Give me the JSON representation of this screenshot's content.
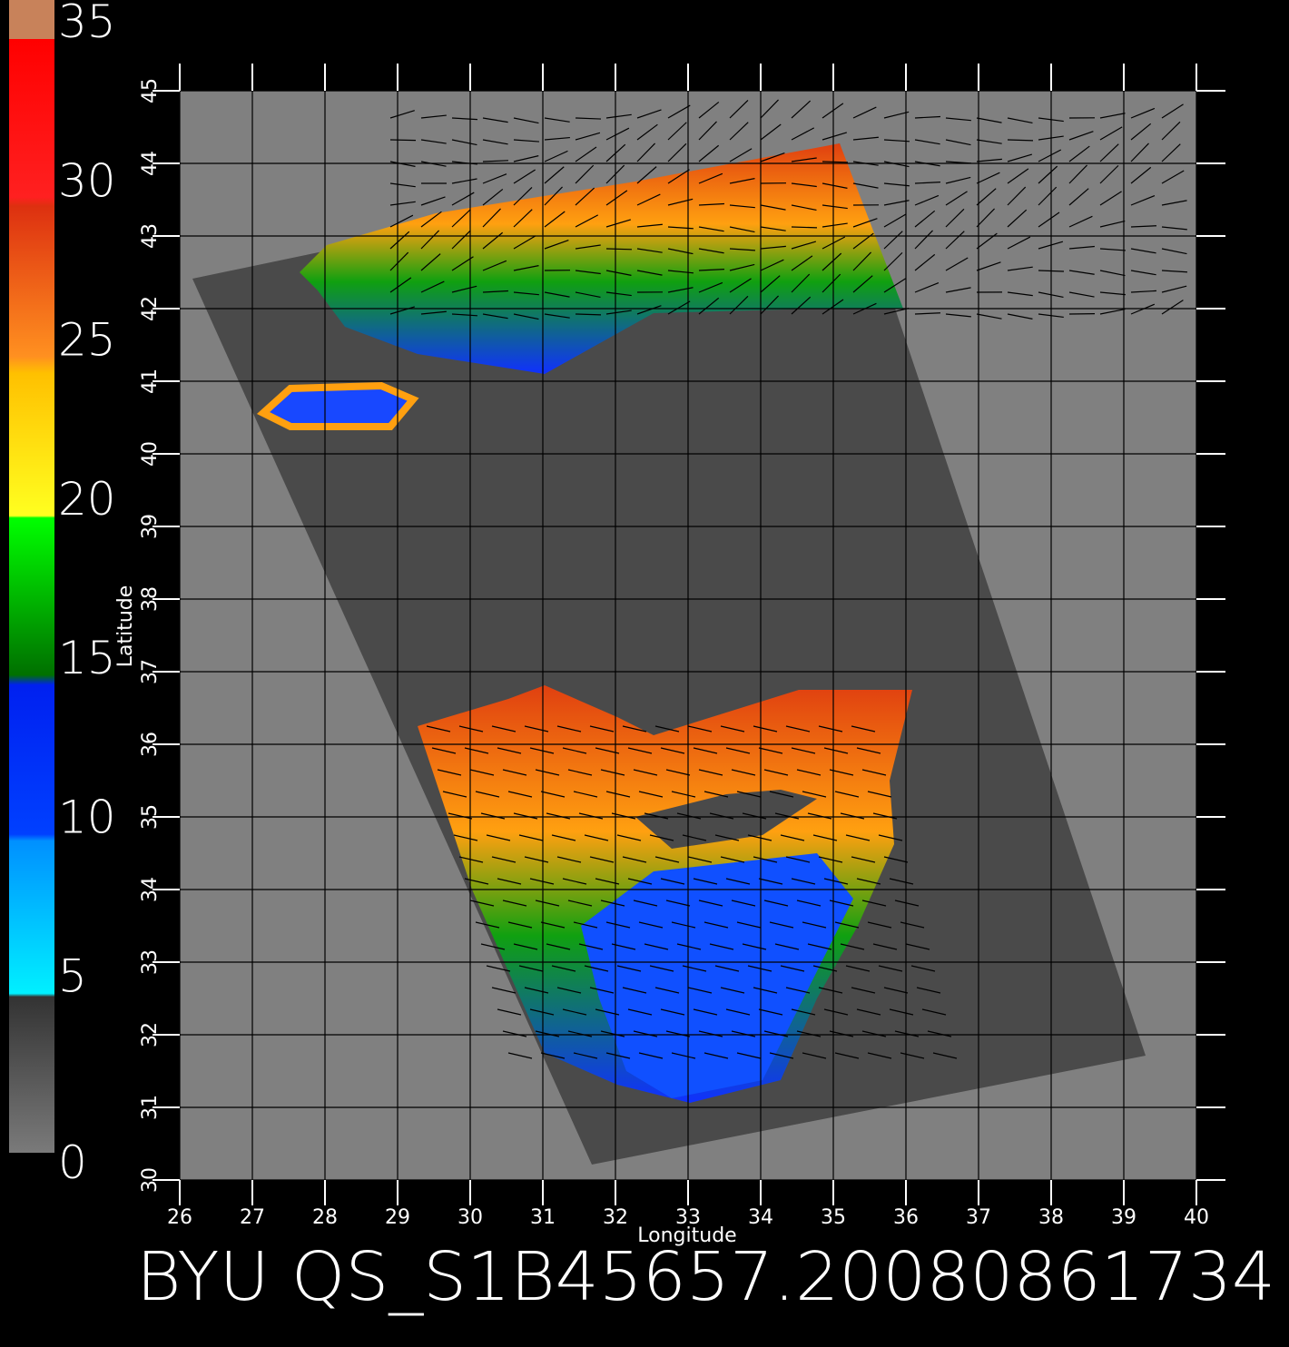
{
  "colorbar": {
    "range": [
      0,
      35
    ],
    "ticks": [
      0,
      5,
      10,
      15,
      20,
      25,
      30,
      35
    ]
  },
  "map": {
    "xlabel": "Longitude",
    "ylabel": "Latitude",
    "xlim": [
      26,
      40
    ],
    "ylim": [
      30,
      45
    ],
    "xticks": [
      26,
      27,
      28,
      29,
      30,
      31,
      32,
      33,
      34,
      35,
      36,
      37,
      38,
      39,
      40
    ],
    "yticks": [
      30,
      31,
      32,
      33,
      34,
      35,
      36,
      37,
      38,
      39,
      40,
      41,
      42,
      43,
      44,
      45
    ]
  },
  "caption": "BYU QS_S1B45657.20080861734"
}
